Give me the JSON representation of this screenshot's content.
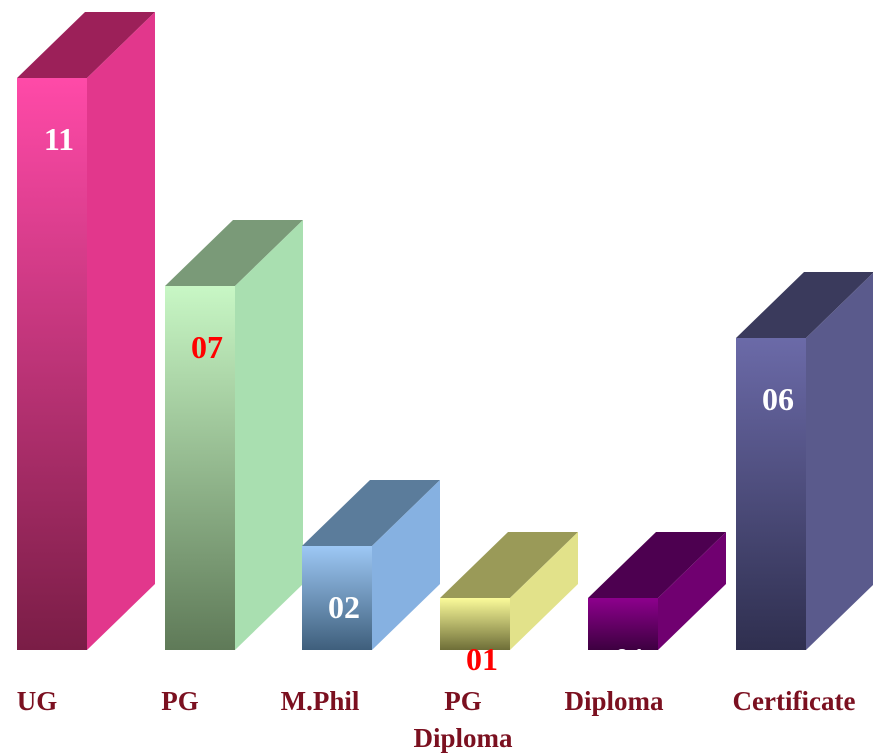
{
  "chart_data": {
    "type": "bar",
    "title": "",
    "xlabel": "",
    "ylabel": "",
    "ylim": [
      0,
      11
    ],
    "grid": false,
    "legend": "none",
    "categories": [
      [
        "UG"
      ],
      [
        "PG"
      ],
      [
        "M.Phil"
      ],
      [
        "PG",
        "Diploma"
      ],
      [
        "Diploma"
      ],
      [
        "Certificate"
      ]
    ],
    "values": [
      11,
      7,
      2,
      1,
      1,
      6
    ],
    "data_labels": [
      "11",
      "07",
      "02",
      "01",
      "01",
      "06"
    ],
    "bar_colors": [
      {
        "front_top": "#ff4aa8",
        "front_bottom": "#7a1d46",
        "side": "#e2378c",
        "top": "#9c2059",
        "label": "#ffffff"
      },
      {
        "front_top": "#c8f7c5",
        "front_bottom": "#5f7a58",
        "side": "#a9dfb0",
        "top": "#7a9a78",
        "label": "#ff0000"
      },
      {
        "front_top": "#9dc8f5",
        "front_bottom": "#3f5f7c",
        "side": "#86b1e1",
        "top": "#5b7c9b",
        "label": "#ffffff"
      },
      {
        "front_top": "#fbfb9a",
        "front_bottom": "#6e6e38",
        "side": "#e2e28a",
        "top": "#9a9a58",
        "label": "#ff0000"
      },
      {
        "front_top": "#8d008d",
        "front_bottom": "#3d0040",
        "side": "#700070",
        "top": "#4d0050",
        "label": "#ffffff"
      },
      {
        "front_top": "#6b6aa8",
        "front_bottom": "#2f2f4f",
        "side": "#5a5a8c",
        "top": "#3a3a5c",
        "label": "#ffffff"
      }
    ],
    "label_color": "#7b1020"
  }
}
